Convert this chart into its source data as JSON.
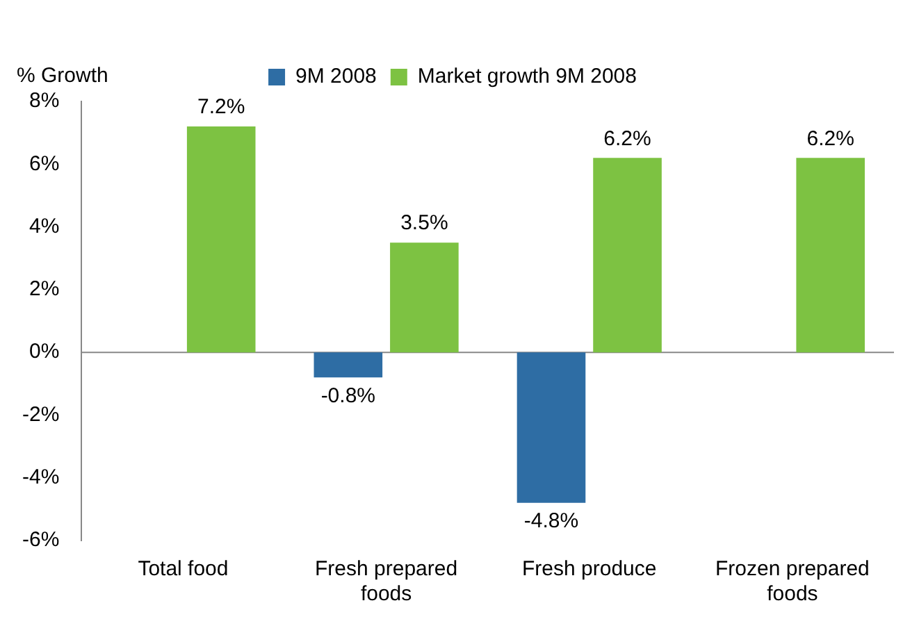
{
  "chart_data": {
    "type": "bar",
    "ylabel": "% Growth",
    "categories": [
      "Total food",
      "Fresh prepared foods",
      "Fresh produce",
      "Frozen prepared foods"
    ],
    "series": [
      {
        "name": "9M 2008",
        "color": "#2e6da4",
        "values": [
          null,
          -0.8,
          -4.8,
          null
        ],
        "value_labels": [
          null,
          "-0.8%",
          "-4.8%",
          null
        ]
      },
      {
        "name": "Market growth 9M 2008",
        "color": "#7dc242",
        "values": [
          7.2,
          3.5,
          6.2,
          6.2
        ],
        "value_labels": [
          "7.2%",
          "3.5%",
          "6.2%",
          "6.2%"
        ]
      }
    ],
    "ylim": [
      -6,
      8
    ],
    "yticks": [
      {
        "value": -6,
        "label": "-6%"
      },
      {
        "value": -4,
        "label": "-4%"
      },
      {
        "value": -2,
        "label": "-2%"
      },
      {
        "value": 0,
        "label": "0%"
      },
      {
        "value": 2,
        "label": "2%"
      },
      {
        "value": 4,
        "label": "4%"
      },
      {
        "value": 6,
        "label": "6%"
      },
      {
        "value": 8,
        "label": "8%"
      }
    ],
    "ref_lines": [
      {
        "axis": "y",
        "value": 0,
        "color": "#888888"
      }
    ],
    "grid": false,
    "legend": "top"
  }
}
